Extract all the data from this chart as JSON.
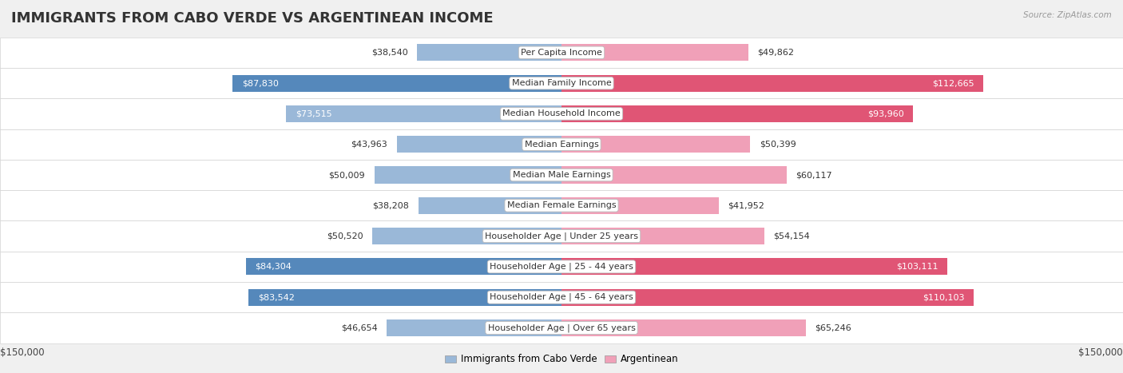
{
  "title": "IMMIGRANTS FROM CABO VERDE VS ARGENTINEAN INCOME",
  "source": "Source: ZipAtlas.com",
  "categories": [
    "Per Capita Income",
    "Median Family Income",
    "Median Household Income",
    "Median Earnings",
    "Median Male Earnings",
    "Median Female Earnings",
    "Householder Age | Under 25 years",
    "Householder Age | 25 - 44 years",
    "Householder Age | 45 - 64 years",
    "Householder Age | Over 65 years"
  ],
  "cabo_verde_values": [
    38540,
    87830,
    73515,
    43963,
    50009,
    38208,
    50520,
    84304,
    83542,
    46654
  ],
  "argentinean_values": [
    49862,
    112665,
    93960,
    50399,
    60117,
    41952,
    54154,
    103111,
    110103,
    65246
  ],
  "cabo_verde_labels": [
    "$38,540",
    "$87,830",
    "$73,515",
    "$43,963",
    "$50,009",
    "$38,208",
    "$50,520",
    "$84,304",
    "$83,542",
    "$46,654"
  ],
  "argentinean_labels": [
    "$49,862",
    "$112,665",
    "$93,960",
    "$50,399",
    "$60,117",
    "$41,952",
    "$54,154",
    "$103,111",
    "$110,103",
    "$65,246"
  ],
  "cabo_verde_color": "#9ab8d8",
  "argentinean_color": "#f0a0b8",
  "cabo_verde_color_dark": "#5588bb",
  "argentinean_color_dark": "#e05575",
  "max_value": 150000,
  "background_color": "#f0f0f0",
  "row_bg_color": "#ffffff",
  "row_alt_bg_color": "#f8f8f8",
  "legend_cabo_verde": "Immigrants from Cabo Verde",
  "legend_argentinean": "Argentinean",
  "xlabel_left": "$150,000",
  "xlabel_right": "$150,000",
  "title_fontsize": 13,
  "label_fontsize": 8,
  "category_fontsize": 8
}
